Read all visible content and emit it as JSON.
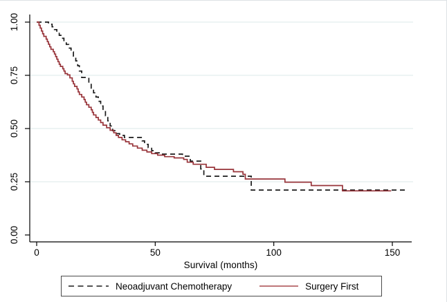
{
  "figure": {
    "background": "#ffffff",
    "frame_color": "#dde1e4",
    "axis_color": "#000000",
    "grid_color": "#e7f0f1",
    "text_color": "#000000"
  },
  "chart_data": {
    "type": "line",
    "subtype": "kaplan-meier-step",
    "title": "",
    "xlabel": "Survival (months)",
    "ylabel": "",
    "xlim": [
      0,
      158
    ],
    "ylim": [
      0,
      1.04
    ],
    "xticks": [
      0,
      50,
      100,
      150
    ],
    "ytick_values": [
      0,
      0.25,
      0.5,
      0.75,
      1
    ],
    "ytick_labels": [
      "0.00",
      "0.25",
      "0.50",
      "0.75",
      "1.00"
    ],
    "grid": "horizontal",
    "grid_values": [
      0.25,
      0.5,
      0.75,
      1
    ],
    "legend_position": "bottom-center",
    "series": [
      {
        "name": "Neoadjuvant Chemotherapy",
        "style": "dashed",
        "color": "#1a1a1a",
        "points": [
          [
            0,
            1
          ],
          [
            5,
            0.99
          ],
          [
            6.5,
            0.978
          ],
          [
            7.5,
            0.965
          ],
          [
            8.5,
            0.952
          ],
          [
            9.5,
            0.938
          ],
          [
            10.5,
            0.924
          ],
          [
            11.5,
            0.91
          ],
          [
            12.5,
            0.895
          ],
          [
            13.5,
            0.878
          ],
          [
            14.5,
            0.86
          ],
          [
            15.5,
            0.84
          ],
          [
            16.5,
            0.818
          ],
          [
            17.3,
            0.795
          ],
          [
            18,
            0.77
          ],
          [
            19,
            0.74
          ],
          [
            22,
            0.715
          ],
          [
            23,
            0.69
          ],
          [
            24,
            0.668
          ],
          [
            25,
            0.648
          ],
          [
            26,
            0.628
          ],
          [
            27,
            0.606
          ],
          [
            28,
            0.584
          ],
          [
            29,
            0.56
          ],
          [
            30,
            0.536
          ],
          [
            31,
            0.512
          ],
          [
            32,
            0.49
          ],
          [
            33.5,
            0.476
          ],
          [
            35,
            0.468
          ],
          [
            37,
            0.458
          ],
          [
            44.5,
            0.442
          ],
          [
            45.5,
            0.426
          ],
          [
            47,
            0.41
          ],
          [
            48.5,
            0.396
          ],
          [
            50,
            0.386
          ],
          [
            52,
            0.38
          ],
          [
            61.5,
            0.37
          ],
          [
            64.8,
            0.347
          ],
          [
            69.2,
            0.31
          ],
          [
            70.5,
            0.276
          ],
          [
            90.5,
            0.211
          ],
          [
            156,
            0.211
          ]
        ]
      },
      {
        "name": "Surgery First",
        "style": "solid",
        "color": "#98343a",
        "points": [
          [
            0,
            1
          ],
          [
            1,
            0.985
          ],
          [
            1.5,
            0.972
          ],
          [
            2,
            0.958
          ],
          [
            2.5,
            0.945
          ],
          [
            3,
            0.933
          ],
          [
            4,
            0.92
          ],
          [
            4.5,
            0.908
          ],
          [
            5,
            0.896
          ],
          [
            5.5,
            0.884
          ],
          [
            6,
            0.872
          ],
          [
            7,
            0.861
          ],
          [
            7.5,
            0.85
          ],
          [
            8,
            0.838
          ],
          [
            8.5,
            0.826
          ],
          [
            9,
            0.814
          ],
          [
            9.5,
            0.802
          ],
          [
            10,
            0.792
          ],
          [
            11,
            0.781
          ],
          [
            11.5,
            0.77
          ],
          [
            12,
            0.758
          ],
          [
            13,
            0.752
          ],
          [
            14,
            0.738
          ],
          [
            15,
            0.722
          ],
          [
            15.5,
            0.71
          ],
          [
            16,
            0.698
          ],
          [
            17,
            0.686
          ],
          [
            17.5,
            0.672
          ],
          [
            18,
            0.66
          ],
          [
            19,
            0.648
          ],
          [
            20,
            0.636
          ],
          [
            20.5,
            0.624
          ],
          [
            21,
            0.612
          ],
          [
            22,
            0.6
          ],
          [
            23,
            0.588
          ],
          [
            23.5,
            0.576
          ],
          [
            24,
            0.564
          ],
          [
            25,
            0.552
          ],
          [
            26,
            0.54
          ],
          [
            27,
            0.528
          ],
          [
            28,
            0.516
          ],
          [
            29.5,
            0.504
          ],
          [
            31,
            0.492
          ],
          [
            32.5,
            0.48
          ],
          [
            33.5,
            0.468
          ],
          [
            34.5,
            0.458
          ],
          [
            36,
            0.447
          ],
          [
            37.5,
            0.438
          ],
          [
            39,
            0.428
          ],
          [
            40.5,
            0.418
          ],
          [
            42.5,
            0.408
          ],
          [
            44.5,
            0.398
          ],
          [
            46.5,
            0.39
          ],
          [
            48.5,
            0.382
          ],
          [
            51,
            0.375
          ],
          [
            54,
            0.368
          ],
          [
            58,
            0.362
          ],
          [
            62,
            0.355
          ],
          [
            63.5,
            0.342
          ],
          [
            66,
            0.332
          ],
          [
            71.5,
            0.318
          ],
          [
            75,
            0.308
          ],
          [
            83,
            0.297
          ],
          [
            87,
            0.285
          ],
          [
            88,
            0.263
          ],
          [
            104.7,
            0.248
          ],
          [
            115.8,
            0.232
          ],
          [
            129,
            0.207
          ],
          [
            149.5,
            0.207
          ]
        ]
      }
    ]
  },
  "legend": {
    "items": [
      {
        "label": "Neoadjuvant Chemotherapy",
        "style": "dashed",
        "color": "#1a1a1a"
      },
      {
        "label": "Surgery First",
        "style": "solid",
        "color": "#98343a"
      }
    ]
  }
}
